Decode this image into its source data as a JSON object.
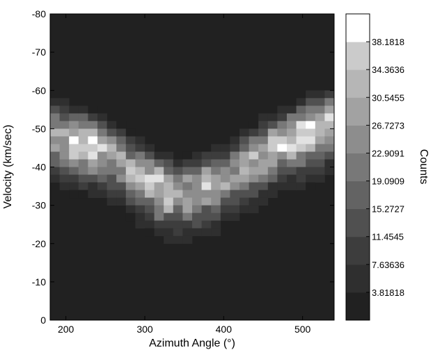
{
  "chart_data": {
    "type": "heatmap",
    "title": "",
    "xlabel": "Azimuth Angle (°)",
    "ylabel": "Velocity (km/sec)",
    "colorbar_label": "Counts",
    "xlim": [
      180,
      540
    ],
    "ylim": [
      0,
      -80
    ],
    "xticks": [
      "200",
      "300",
      "400",
      "500"
    ],
    "xtick_values": [
      200,
      300,
      400,
      500
    ],
    "yticks": [
      "0",
      "-10",
      "-20",
      "-30",
      "-40",
      "-50",
      "-60",
      "-70",
      "-80"
    ],
    "ytick_values": [
      0,
      -10,
      -20,
      -30,
      -40,
      -50,
      -60,
      -70,
      -80
    ],
    "cell_width": 12,
    "cell_height": 2,
    "x_start": 180,
    "y_start": 0,
    "colorbar_ticks": [
      "3.81818",
      "7.63636",
      "11.4545",
      "15.2727",
      "19.0909",
      "22.9091",
      "26.7273",
      "30.5455",
      "34.3636",
      "38.1818"
    ],
    "colorbar_levels": 11,
    "colorbar_max": 42,
    "colormap": [
      "#212121",
      "#2f2f2f",
      "#3d3d3d",
      "#505050",
      "#636363",
      "#787878",
      "#8d8d8d",
      "#a2a2a2",
      "#b6b6b6",
      "#cbcbcb",
      "#e2e2e2",
      "#ffffff"
    ],
    "background_color": "#212121",
    "grid": false,
    "curve_note_series": [
      {
        "x": 186,
        "center": -51,
        "peak": 32
      },
      {
        "x": 198,
        "center": -50,
        "peak": 34
      },
      {
        "x": 210,
        "center": -49.5,
        "peak": 38
      },
      {
        "x": 222,
        "center": -49,
        "peak": 40
      },
      {
        "x": 234,
        "center": -48,
        "peak": 36
      },
      {
        "x": 246,
        "center": -47,
        "peak": 33
      },
      {
        "x": 258,
        "center": -45.5,
        "peak": 30
      },
      {
        "x": 270,
        "center": -44,
        "peak": 29
      },
      {
        "x": 282,
        "center": -42,
        "peak": 30
      },
      {
        "x": 294,
        "center": -40.5,
        "peak": 31
      },
      {
        "x": 306,
        "center": -39,
        "peak": 33
      },
      {
        "x": 318,
        "center": -37.5,
        "peak": 38
      },
      {
        "x": 330,
        "center": -36.5,
        "peak": 36
      },
      {
        "x": 342,
        "center": -36,
        "peak": 31
      },
      {
        "x": 354,
        "center": -36,
        "peak": 30
      },
      {
        "x": 366,
        "center": -36.5,
        "peak": 32
      },
      {
        "x": 378,
        "center": -37.5,
        "peak": 32
      },
      {
        "x": 390,
        "center": -38.5,
        "peak": 30
      },
      {
        "x": 402,
        "center": -40,
        "peak": 28
      },
      {
        "x": 414,
        "center": -41.5,
        "peak": 27
      },
      {
        "x": 426,
        "center": -43,
        "peak": 28
      },
      {
        "x": 438,
        "center": -44.5,
        "peak": 30
      },
      {
        "x": 450,
        "center": -46,
        "peak": 32
      },
      {
        "x": 462,
        "center": -47.5,
        "peak": 34
      },
      {
        "x": 474,
        "center": -49,
        "peak": 36
      },
      {
        "x": 486,
        "center": -50,
        "peak": 38
      },
      {
        "x": 498,
        "center": -51,
        "peak": 40
      },
      {
        "x": 510,
        "center": -52,
        "peak": 41
      },
      {
        "x": 522,
        "center": -53,
        "peak": 40
      },
      {
        "x": 534,
        "center": -54,
        "peak": 36
      }
    ]
  }
}
